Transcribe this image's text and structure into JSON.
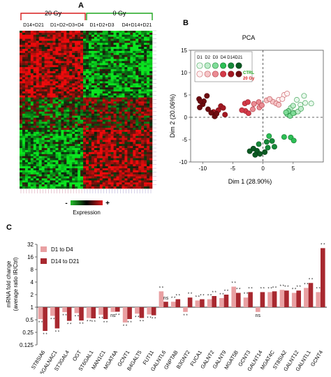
{
  "panels": {
    "a": {
      "letter": "A"
    },
    "b": {
      "letter": "B"
    },
    "c": {
      "letter": "C"
    }
  },
  "heatmap": {
    "group_20gy": "20 Gy",
    "group_0gy": "0 Gy",
    "sub_d14_d21": "D14+D21",
    "sub_d1_d4_20": "D1+D2+D3+D4",
    "sub_d1_d3_0": "D1+D2+D3",
    "sub_d4_d21_0": "D4+D14+D21",
    "legend_minus": "-",
    "legend_plus": "+",
    "legend_label": "Expression",
    "colors": {
      "red": "#e0191c",
      "green": "#22c02a",
      "black": "#000000"
    }
  },
  "chart_data": [
    {
      "type": "scatter",
      "title": "PCA",
      "xlabel": "Dim 1 (28.90%)",
      "ylabel": "Dim 2 (20.06%)",
      "xlim": [
        -12,
        10
      ],
      "ylim": [
        -10,
        15
      ],
      "xticks": [
        -10,
        -5,
        0,
        5
      ],
      "yticks": [
        -10,
        -5,
        0,
        5,
        10,
        15
      ],
      "legend": {
        "days": [
          "D1",
          "D2",
          "D3",
          "D4",
          "D14",
          "D21"
        ],
        "ctrl_label": "CTRL",
        "gy_label": "20 Gy",
        "ctrl_colors": [
          "#e8f8ec",
          "#bfeccb",
          "#7fdc98",
          "#2cbf55",
          "#168a3a",
          "#0a5a22"
        ],
        "gy_colors": [
          "#fdf1f1",
          "#f6c6c8",
          "#ea8c94",
          "#d43a48",
          "#a41822",
          "#6e0c10"
        ]
      },
      "series": [
        {
          "name": "CTRL D1",
          "points": [
            [
              5.6,
              3.9
            ],
            [
              6.2,
              2.8
            ],
            [
              7.0,
              3.2
            ],
            [
              8.0,
              3.1
            ],
            [
              6.8,
              4.8
            ]
          ]
        },
        {
          "name": "CTRL D2",
          "points": [
            [
              4.6,
              2.1
            ],
            [
              5.2,
              1.0
            ],
            [
              5.8,
              1.3
            ],
            [
              6.3,
              1.9
            ],
            [
              5.0,
              2.6
            ]
          ]
        },
        {
          "name": "CTRL D3",
          "points": [
            [
              4.0,
              0.7
            ],
            [
              4.5,
              0.3
            ],
            [
              5.0,
              0.9
            ],
            [
              4.2,
              1.4
            ],
            [
              3.8,
              1.1
            ]
          ]
        },
        {
          "name": "CTRL D4",
          "points": [
            [
              3.5,
              -4.4
            ],
            [
              4.6,
              -4.5
            ],
            [
              5.1,
              -5.2
            ],
            [
              1.0,
              -4.2
            ]
          ]
        },
        {
          "name": "CTRL D14",
          "points": [
            [
              0.6,
              -5.5
            ],
            [
              1.5,
              -5.3
            ],
            [
              -0.7,
              -6.0
            ],
            [
              1.9,
              -6.6
            ],
            [
              0.8,
              -6.8
            ]
          ]
        },
        {
          "name": "CTRL D21",
          "points": [
            [
              -1.6,
              -7.0
            ],
            [
              -1.0,
              -7.5
            ],
            [
              -0.5,
              -8.2
            ],
            [
              -1.3,
              -8.4
            ],
            [
              0.3,
              -7.8
            ],
            [
              -2.2,
              -7.6
            ]
          ]
        },
        {
          "name": "20 Gy D1",
          "points": [
            [
              3.5,
              5.0
            ],
            [
              4.0,
              5.3
            ],
            [
              2.6,
              3.9
            ],
            [
              3.2,
              4.1
            ]
          ]
        },
        {
          "name": "20 Gy D2",
          "points": [
            [
              1.6,
              3.5
            ],
            [
              2.2,
              3.1
            ],
            [
              0.6,
              3.8
            ],
            [
              1.1,
              4.1
            ],
            [
              2.6,
              2.8
            ]
          ]
        },
        {
          "name": "20 Gy D3",
          "points": [
            [
              -0.7,
              3.4
            ],
            [
              -1.5,
              3.0
            ],
            [
              -0.6,
              2.2
            ],
            [
              -1.7,
              1.8
            ],
            [
              -0.2,
              2.7
            ]
          ]
        },
        {
          "name": "20 Gy D4",
          "points": [
            [
              -2.9,
              1.4
            ],
            [
              -2.4,
              0.9
            ],
            [
              -3.5,
              1.6
            ],
            [
              -3.0,
              3.1
            ],
            [
              -2.5,
              3.4
            ]
          ]
        },
        {
          "name": "20 Gy D14",
          "points": [
            [
              -7.4,
              1.6
            ],
            [
              -6.3,
              0.6
            ],
            [
              -7.0,
              2.5
            ],
            [
              -8.2,
              1.2
            ],
            [
              -6.6,
              2.1
            ]
          ]
        },
        {
          "name": "20 Gy D21",
          "points": [
            [
              -10.6,
              4.1
            ],
            [
              -10.0,
              2.9
            ],
            [
              -9.3,
              4.8
            ],
            [
              -9.8,
              3.6
            ],
            [
              -10.5,
              2.2
            ],
            [
              -9.1,
              1.8
            ],
            [
              -8.6,
              1.0
            ],
            [
              -8.0,
              0.2
            ],
            [
              -7.7,
              0.8
            ],
            [
              -10.4,
              3.6
            ]
          ]
        }
      ]
    },
    {
      "type": "bar",
      "xlabel": "",
      "ylabel": "mRNA fold change (average ratio IR/Ctrl)",
      "ylabel_lines": [
        "mRNA fold change",
        "(average ratio IR/Ctrl)"
      ],
      "yscale": "log2",
      "ylim": [
        0.125,
        32
      ],
      "yticks": [
        32,
        16,
        8,
        4,
        2,
        1,
        0.5,
        0.25,
        0.125
      ],
      "ytick_labels": [
        "32",
        "16",
        "8",
        "4",
        "2",
        "1",
        "0.5",
        "0.25",
        "0.125"
      ],
      "legend_placement": "top-left",
      "categories": [
        "ST8SIA6",
        "ST6GALNAC1",
        "ST3GAL4",
        "OGT",
        "ST6GAL1",
        "MAN1C1",
        "MGAT4A",
        "GCNT1",
        "B4GALT5",
        "FUT11",
        "GALNTL6",
        "GNPTAB",
        "B3GNT2",
        "FUCA1",
        "GALNT2",
        "GALNT9",
        "MGAT5B",
        "GCNT3",
        "GALNT14",
        "MGAT4C",
        "ST8SIA2",
        "GALNT12",
        "GALNTL1",
        "GCNT4"
      ],
      "series": [
        {
          "name": "D1 to D4",
          "color": "#e9a0a2",
          "values": [
            0.52,
            0.62,
            0.76,
            0.72,
            0.55,
            0.66,
            0.77,
            0.43,
            0.7,
            0.67,
            2.4,
            1.35,
            0.77,
            1.45,
            1.55,
            1.65,
            3.1,
            1.7,
            0.77,
            2.3,
            2.6,
            2.2,
            2.9,
            2.3
          ]
        },
        {
          "name": "D14 to D21",
          "color": "#a8282f",
          "values": [
            0.27,
            0.31,
            0.47,
            0.48,
            0.54,
            0.52,
            0.78,
            0.52,
            0.55,
            0.64,
            1.35,
            1.55,
            1.7,
            1.55,
            1.85,
            2.0,
            2.2,
            2.3,
            2.3,
            2.4,
            2.5,
            2.5,
            3.8,
            26
          ]
        }
      ],
      "annotations": [
        {
          "category": "GALNTL6",
          "series": "D14 to D21",
          "text": "ns"
        },
        {
          "category": "MGAT4A",
          "series": "D1 to D4",
          "text": "ns"
        },
        {
          "category": "GALNT14",
          "series": "D1 to D4",
          "text": "ns"
        }
      ]
    }
  ]
}
